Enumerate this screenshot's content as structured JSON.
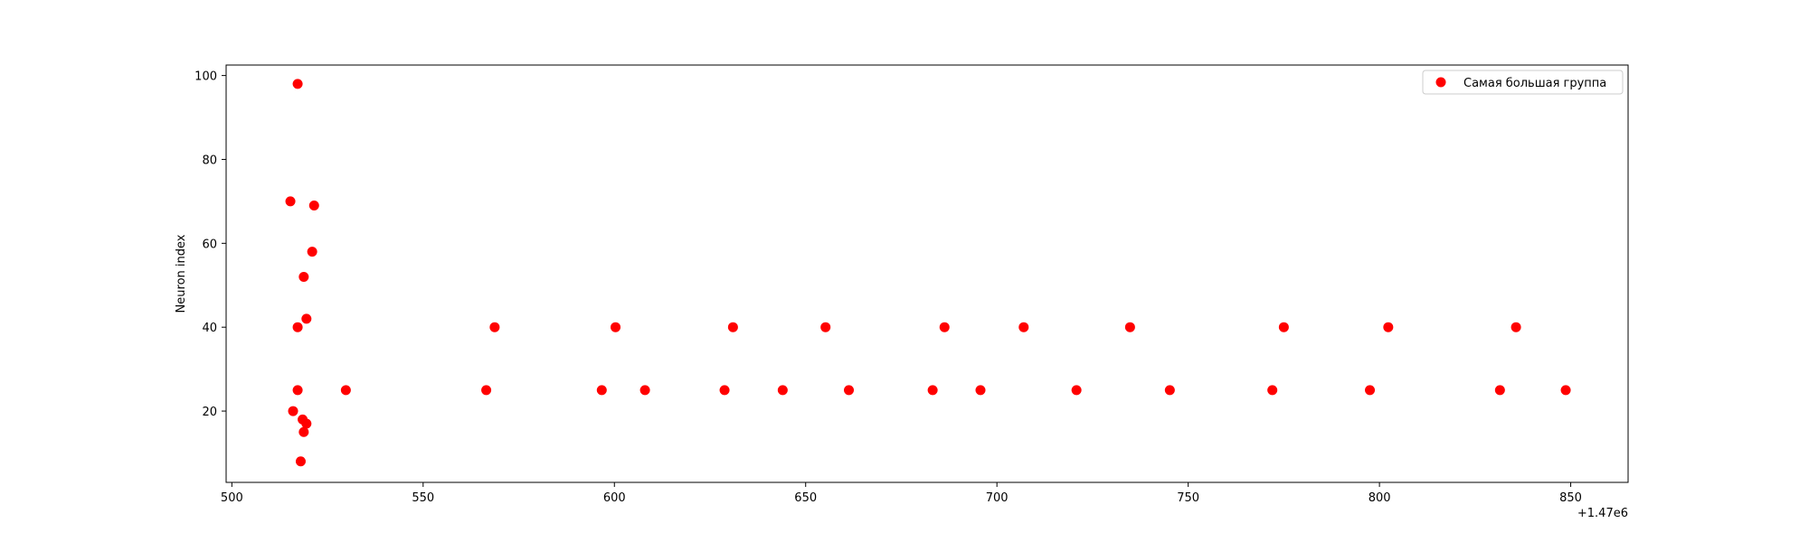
{
  "chart_data": {
    "type": "scatter",
    "title": "",
    "xlabel": "",
    "ylabel": "Neuron index",
    "x_offset_label": "+1.47e6",
    "xlim": [
      498.5,
      865
    ],
    "ylim": [
      3,
      102.5
    ],
    "x_ticks": [
      500,
      550,
      600,
      650,
      700,
      750,
      800,
      850
    ],
    "y_ticks": [
      20,
      40,
      60,
      80,
      100
    ],
    "grid": false,
    "legend_position": "top-right",
    "series": [
      {
        "name": "Самая большая группа",
        "color": "#ff0000",
        "points": [
          [
            517.2,
            98
          ],
          [
            515.3,
            70
          ],
          [
            521.5,
            69
          ],
          [
            521.0,
            58
          ],
          [
            518.8,
            52
          ],
          [
            519.5,
            42
          ],
          [
            517.2,
            40
          ],
          [
            517.2,
            25
          ],
          [
            516.0,
            20
          ],
          [
            518.5,
            18
          ],
          [
            519.5,
            17
          ],
          [
            518.8,
            15
          ],
          [
            518.0,
            8
          ],
          [
            529.8,
            25
          ],
          [
            566.5,
            25
          ],
          [
            568.7,
            40
          ],
          [
            596.7,
            25
          ],
          [
            600.3,
            40
          ],
          [
            608.0,
            25
          ],
          [
            628.8,
            25
          ],
          [
            631.0,
            40
          ],
          [
            644.0,
            25
          ],
          [
            655.2,
            40
          ],
          [
            661.3,
            25
          ],
          [
            683.2,
            25
          ],
          [
            686.3,
            40
          ],
          [
            695.7,
            25
          ],
          [
            707.0,
            40
          ],
          [
            720.8,
            25
          ],
          [
            734.8,
            40
          ],
          [
            745.2,
            25
          ],
          [
            772.0,
            25
          ],
          [
            775.0,
            40
          ],
          [
            797.5,
            25
          ],
          [
            802.3,
            40
          ],
          [
            831.5,
            25
          ],
          [
            835.7,
            40
          ],
          [
            848.7,
            25
          ]
        ]
      }
    ]
  }
}
